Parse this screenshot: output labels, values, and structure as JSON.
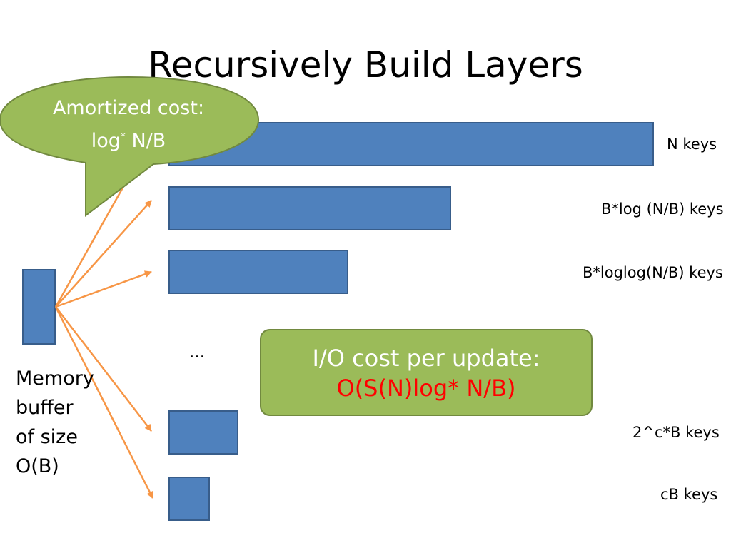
{
  "slide": {
    "title": "Recursively Build Layers"
  },
  "callout": {
    "line1": "Amortized cost:",
    "line2_prefix": "log",
    "line2_sup": "*",
    "line2_suffix": " N/B"
  },
  "layers": [
    {
      "label": "N keys"
    },
    {
      "label": "B*log (N/B) keys"
    },
    {
      "label": "B*loglog(N/B) keys"
    },
    {
      "label": "2^c*B keys"
    },
    {
      "label": "cB keys"
    }
  ],
  "ellipsis": "…",
  "memory": {
    "lines": [
      "Memory",
      "buffer",
      "of size",
      "O(B)"
    ]
  },
  "cost_box": {
    "line1": "I/O cost per update:",
    "line2": "O(S(N)log* N/B)"
  },
  "colors": {
    "bar_fill": "#4f81bd",
    "bar_border": "#385d8a",
    "green_fill": "#9bbb59",
    "green_border": "#71893f",
    "arrow": "#f79646",
    "highlight_text": "#ff0000"
  }
}
